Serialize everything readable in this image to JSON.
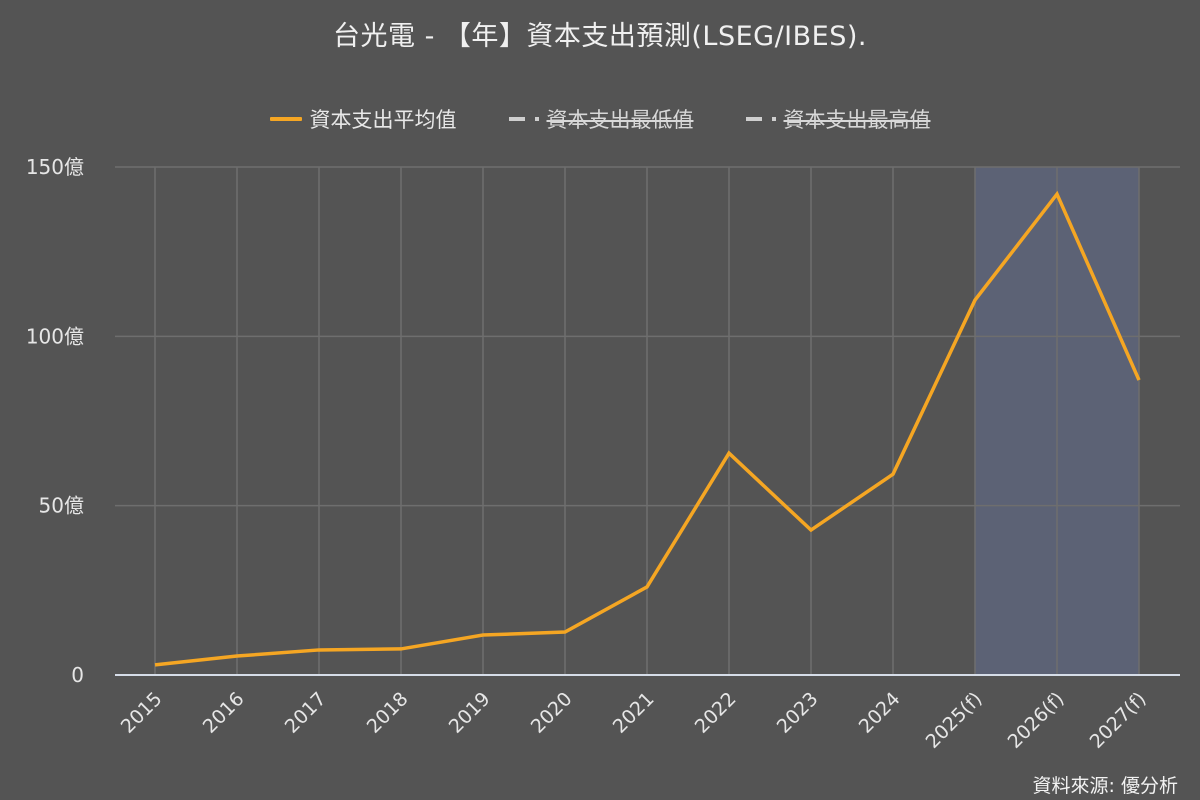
{
  "title": "台光電 - 【年】資本支出預測(LSEG/IBES).",
  "legend": [
    {
      "label": "資本支出平均值",
      "color": "#f5a623",
      "style": "solid",
      "hidden": false
    },
    {
      "label": "資本支出最低值",
      "color": "#cfcfcf",
      "style": "dashed",
      "hidden": true
    },
    {
      "label": "資本支出最高值",
      "color": "#cfcfcf",
      "style": "dashed",
      "hidden": true
    }
  ],
  "source": "資料來源: 優分析",
  "colors": {
    "background": "#545454",
    "line": "#f5a623",
    "forecast_band": "#5c6275",
    "grid": "#6e6e6e",
    "axis": "#d6dde8"
  },
  "chart_data": {
    "type": "line",
    "title": "台光電 - 【年】資本支出預測(LSEG/IBES).",
    "xlabel": "",
    "ylabel": "",
    "categories": [
      "2015",
      "2016",
      "2017",
      "2018",
      "2019",
      "2020",
      "2021",
      "2022",
      "2023",
      "2024",
      "2025(f)",
      "2026(f)",
      "2027(f)"
    ],
    "series": [
      {
        "name": "資本支出平均值",
        "values": [
          3.0,
          5.6,
          7.4,
          7.7,
          11.8,
          12.7,
          26.0,
          65.5,
          42.8,
          59.3,
          110.7,
          142.0,
          87.1
        ],
        "visible": true
      },
      {
        "name": "資本支出最低值",
        "values": [],
        "visible": false
      },
      {
        "name": "資本支出最高值",
        "values": [],
        "visible": false
      }
    ],
    "unit": "億",
    "ylim": [
      0,
      150
    ],
    "yticks": [
      0,
      50,
      100,
      150
    ],
    "ytick_labels": [
      "0",
      "50億",
      "100億",
      "150億"
    ],
    "forecast_range": [
      "2025(f)",
      "2027(f)"
    ],
    "grid": true,
    "legend_position": "top"
  }
}
